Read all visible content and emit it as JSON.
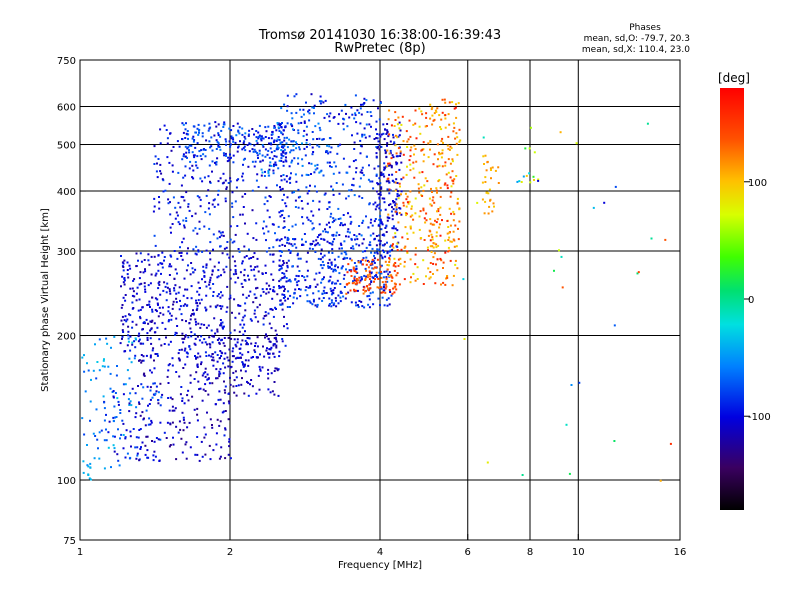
{
  "chart_data": {
    "type": "scatter",
    "title": "Tromsø 20141030 16:38:00-16:39:43",
    "subtitle": "RwPretec (8p)",
    "xlabel": "Frequency [MHz]",
    "ylabel": "Stationary phase Virtual Height [km]",
    "x_scale": "log",
    "y_scale": "log",
    "xlim": [
      1,
      16
    ],
    "ylim": [
      75,
      750
    ],
    "x_ticks": [
      1,
      2,
      4,
      6,
      8,
      10,
      16
    ],
    "y_ticks": [
      75,
      100,
      200,
      300,
      400,
      500,
      600,
      750
    ],
    "x_gridlines": [
      2,
      4,
      6,
      8,
      10
    ],
    "y_gridlines": [
      100,
      200,
      300,
      400,
      500,
      600
    ],
    "grid": true,
    "phase_header": {
      "title": "Phases",
      "line1": "mean, sd,O: -79.7, 20.3",
      "line2": "mean, sd,X: 110.4, 23.0"
    },
    "colorbar": {
      "label": "[deg]",
      "range": [
        -180,
        180
      ],
      "ticks": [
        100,
        0,
        -100
      ]
    },
    "clusters": [
      {
        "f0": 1.0,
        "f1": 1.05,
        "h0": 100,
        "h1": 110,
        "n": 12,
        "p0": -60,
        "p1": -30
      },
      {
        "f0": 1.0,
        "f1": 1.3,
        "h0": 105,
        "h1": 200,
        "n": 70,
        "p0": -80,
        "p1": -30
      },
      {
        "f0": 1.1,
        "f1": 1.45,
        "h0": 110,
        "h1": 160,
        "n": 90,
        "p0": -115,
        "p1": -60
      },
      {
        "f0": 1.3,
        "f1": 2.0,
        "h0": 110,
        "h1": 180,
        "n": 180,
        "p0": -135,
        "p1": -90
      },
      {
        "f0": 1.2,
        "f1": 2.6,
        "h0": 180,
        "h1": 300,
        "n": 600,
        "p0": -125,
        "p1": -85
      },
      {
        "f0": 1.4,
        "f1": 2.6,
        "h0": 300,
        "h1": 560,
        "n": 320,
        "p0": -120,
        "p1": -70
      },
      {
        "f0": 1.6,
        "f1": 2.6,
        "h0": 460,
        "h1": 560,
        "n": 160,
        "p0": -110,
        "p1": -55
      },
      {
        "f0": 1.7,
        "f1": 2.5,
        "h0": 150,
        "h1": 200,
        "n": 140,
        "p0": -130,
        "p1": -90
      },
      {
        "f0": 2.5,
        "f1": 4.2,
        "h0": 230,
        "h1": 320,
        "n": 380,
        "p0": -115,
        "p1": -65
      },
      {
        "f0": 2.5,
        "f1": 4.0,
        "h0": 320,
        "h1": 640,
        "n": 330,
        "p0": -115,
        "p1": -60
      },
      {
        "f0": 2.3,
        "f1": 3.2,
        "h0": 430,
        "h1": 560,
        "n": 90,
        "p0": -95,
        "p1": -45
      },
      {
        "f0": 3.9,
        "f1": 4.4,
        "h0": 300,
        "h1": 560,
        "n": 170,
        "p0": -125,
        "p1": -80
      },
      {
        "f0": 4.1,
        "f1": 5.7,
        "h0": 255,
        "h1": 600,
        "n": 320,
        "p0": 80,
        "p1": 170
      },
      {
        "f0": 3.4,
        "f1": 4.3,
        "h0": 245,
        "h1": 290,
        "n": 100,
        "p0": 120,
        "p1": 160
      },
      {
        "f0": 5.0,
        "f1": 5.8,
        "h0": 300,
        "h1": 640,
        "n": 70,
        "p0": 90,
        "p1": 140
      },
      {
        "f0": 6.4,
        "f1": 6.9,
        "h0": 360,
        "h1": 480,
        "n": 30,
        "p0": 90,
        "p1": 120
      },
      {
        "f0": 7.5,
        "f1": 8.3,
        "h0": 410,
        "h1": 500,
        "n": 14,
        "p0": -120,
        "p1": 100
      },
      {
        "f0": 5.5,
        "f1": 16.0,
        "h0": 95,
        "h1": 560,
        "n": 30,
        "p0": -110,
        "p1": 160
      }
    ]
  }
}
